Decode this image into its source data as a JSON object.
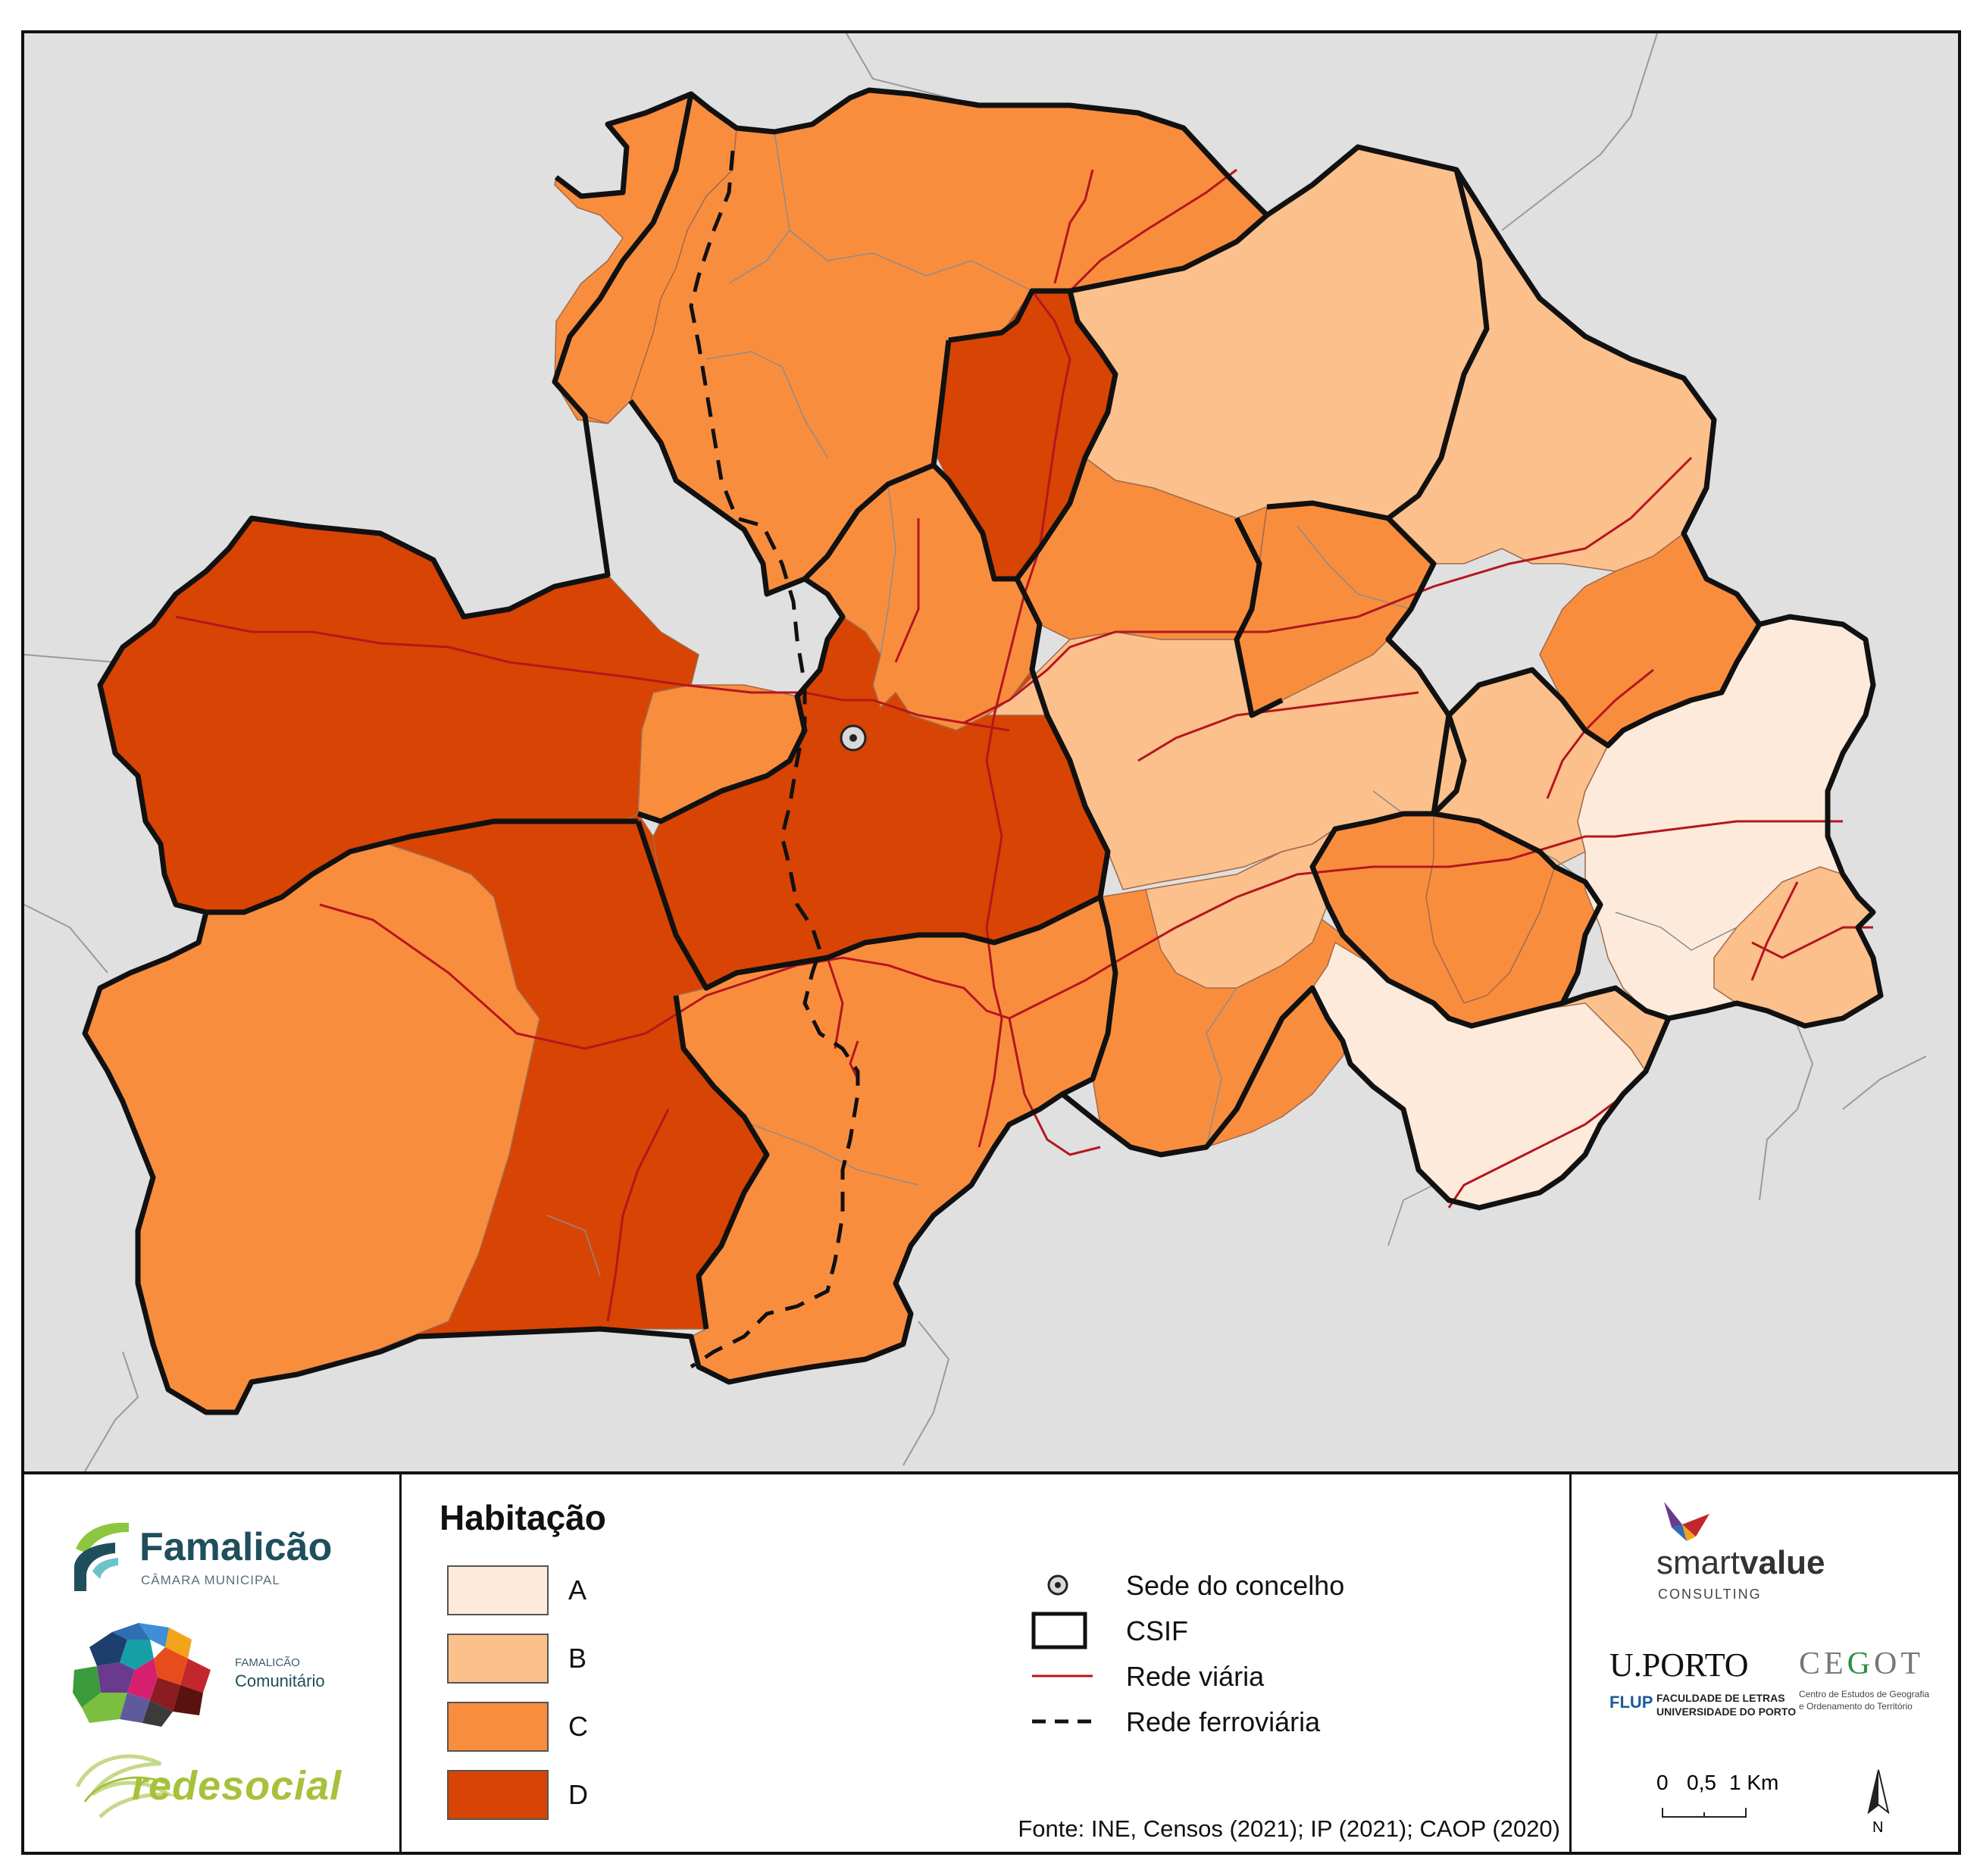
{
  "colors": {
    "A": "#fdeadb",
    "B": "#fbc08c",
    "C": "#f98d3e",
    "D": "#d84403",
    "surround": "#e0e0e0",
    "road": "#b4161e",
    "csif": "#111111",
    "rail": "#111111"
  },
  "legend": {
    "title": "Habitação",
    "classes": [
      {
        "key": "A",
        "label": "A"
      },
      {
        "key": "B",
        "label": "B"
      },
      {
        "key": "C",
        "label": "C"
      },
      {
        "key": "D",
        "label": "D"
      }
    ],
    "symbols": {
      "seat": "Sede do concelho",
      "csif": "CSIF",
      "road": "Rede viária",
      "rail": "Rede ferroviária"
    }
  },
  "source": "Fonte: INE, Censos (2021); IP (2021); CAOP (2020)",
  "logos": {
    "famalicao": {
      "name": "Famalicão",
      "sub": "CÂMARA MUNICIPAL"
    },
    "comunitario": {
      "small": "FAMALICÃO",
      "big": "Comunitário"
    },
    "redesocial": {
      "name": "redesocial"
    },
    "smartvalue": {
      "smart": "smart",
      "value": "value",
      "sub": "CONSULTING"
    },
    "uporto": {
      "name": "U.PORTO",
      "flup": "FLUP",
      "fac1": "FACULDADE DE LETRAS",
      "fac2": "UNIVERSIDADE DO PORTO"
    },
    "cegot": {
      "name_pre": "CE",
      "name_g": "G",
      "name_post": "OT",
      "sub1": "Centro de Estudos de Geografia",
      "sub2": "e Ordenamento do Território"
    }
  },
  "scale": {
    "l0": "0",
    "l1": "0,5",
    "l2": "1 Km"
  },
  "north": "N",
  "map": {
    "regions": [
      {
        "id": "c-north",
        "class": "C"
      },
      {
        "id": "c-northwest-strip",
        "class": "C"
      },
      {
        "id": "b-northeast",
        "class": "B"
      },
      {
        "id": "b-east-big",
        "class": "B"
      },
      {
        "id": "d-vertical",
        "class": "D"
      },
      {
        "id": "c-east-1",
        "class": "C"
      },
      {
        "id": "c-east-2",
        "class": "C"
      },
      {
        "id": "d-west",
        "class": "D"
      },
      {
        "id": "c-center-small",
        "class": "C"
      },
      {
        "id": "c-center-north",
        "class": "C"
      },
      {
        "id": "d-center",
        "class": "D"
      },
      {
        "id": "d-southwest",
        "class": "D"
      },
      {
        "id": "c-southwest",
        "class": "C"
      },
      {
        "id": "c-south",
        "class": "C"
      },
      {
        "id": "c-south-center",
        "class": "C"
      },
      {
        "id": "b-center-east",
        "class": "B"
      },
      {
        "id": "b-center-east-2",
        "class": "B"
      },
      {
        "id": "c-center-east-3",
        "class": "C"
      },
      {
        "id": "b-east-3",
        "class": "B"
      },
      {
        "id": "c-east-4",
        "class": "C"
      },
      {
        "id": "a-east",
        "class": "A"
      },
      {
        "id": "b-east-4",
        "class": "B"
      },
      {
        "id": "a-southeast",
        "class": "A"
      },
      {
        "id": "b-southeast-small",
        "class": "B"
      },
      {
        "id": "c-southeast-small",
        "class": "C"
      }
    ]
  }
}
